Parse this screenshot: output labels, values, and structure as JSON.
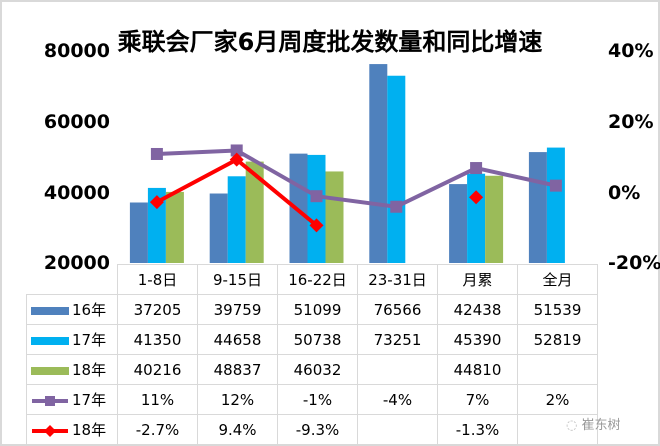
{
  "chart_data": {
    "type": "bar",
    "title": "乘联会厂家6月周度批发数量和同比增速",
    "categories": [
      "1-8日",
      "9-15日",
      "16-22日",
      "23-31日",
      "月累",
      "全月"
    ],
    "series": [
      {
        "name": "16年",
        "kind": "bar",
        "axis": "left",
        "color": "#4f81bd",
        "values": [
          37205,
          39759,
          51099,
          76566,
          42438,
          51539
        ]
      },
      {
        "name": "17年",
        "kind": "bar",
        "axis": "left",
        "color": "#00b0f0",
        "values": [
          41350,
          44658,
          50738,
          73251,
          45390,
          52819
        ]
      },
      {
        "name": "18年",
        "kind": "bar",
        "axis": "left",
        "color": "#9bbb59",
        "values": [
          40216,
          48837,
          46032,
          null,
          44810,
          null
        ]
      },
      {
        "name": "17年",
        "kind": "line",
        "axis": "right",
        "color": "#8064a2",
        "marker": "square",
        "values": [
          11,
          12,
          -1,
          -4,
          7,
          2
        ]
      },
      {
        "name": "18年",
        "kind": "line",
        "axis": "right",
        "color": "#ff0000",
        "marker": "diamond",
        "values": [
          -2.7,
          9.4,
          -9.3,
          null,
          -1.3,
          null
        ]
      }
    ],
    "table_labels": {
      "16年": [
        "37205",
        "39759",
        "51099",
        "76566",
        "42438",
        "51539"
      ],
      "17年": [
        "41350",
        "44658",
        "50738",
        "73251",
        "45390",
        "52819"
      ],
      "18年": [
        "40216",
        "48837",
        "46032",
        "",
        "44810",
        ""
      ],
      "17年增速": [
        "11%",
        "12%",
        "-1%",
        "-4%",
        "7%",
        "2%"
      ],
      "18年增速": [
        "-2.7%",
        "9.4%",
        "-9.3%",
        "",
        "-1.3%",
        ""
      ]
    },
    "ylabel_left": "",
    "ylabel_right": "",
    "ylim_left": [
      20000,
      80000
    ],
    "yticks_left": [
      "80000",
      "60000",
      "40000",
      "20000"
    ],
    "ylim_right": [
      -20,
      40
    ],
    "yticks_right": [
      "40%",
      "20%",
      "0%",
      "-20%"
    ],
    "grid": false,
    "legend_position": "data-table"
  },
  "watermark": "崔东树"
}
